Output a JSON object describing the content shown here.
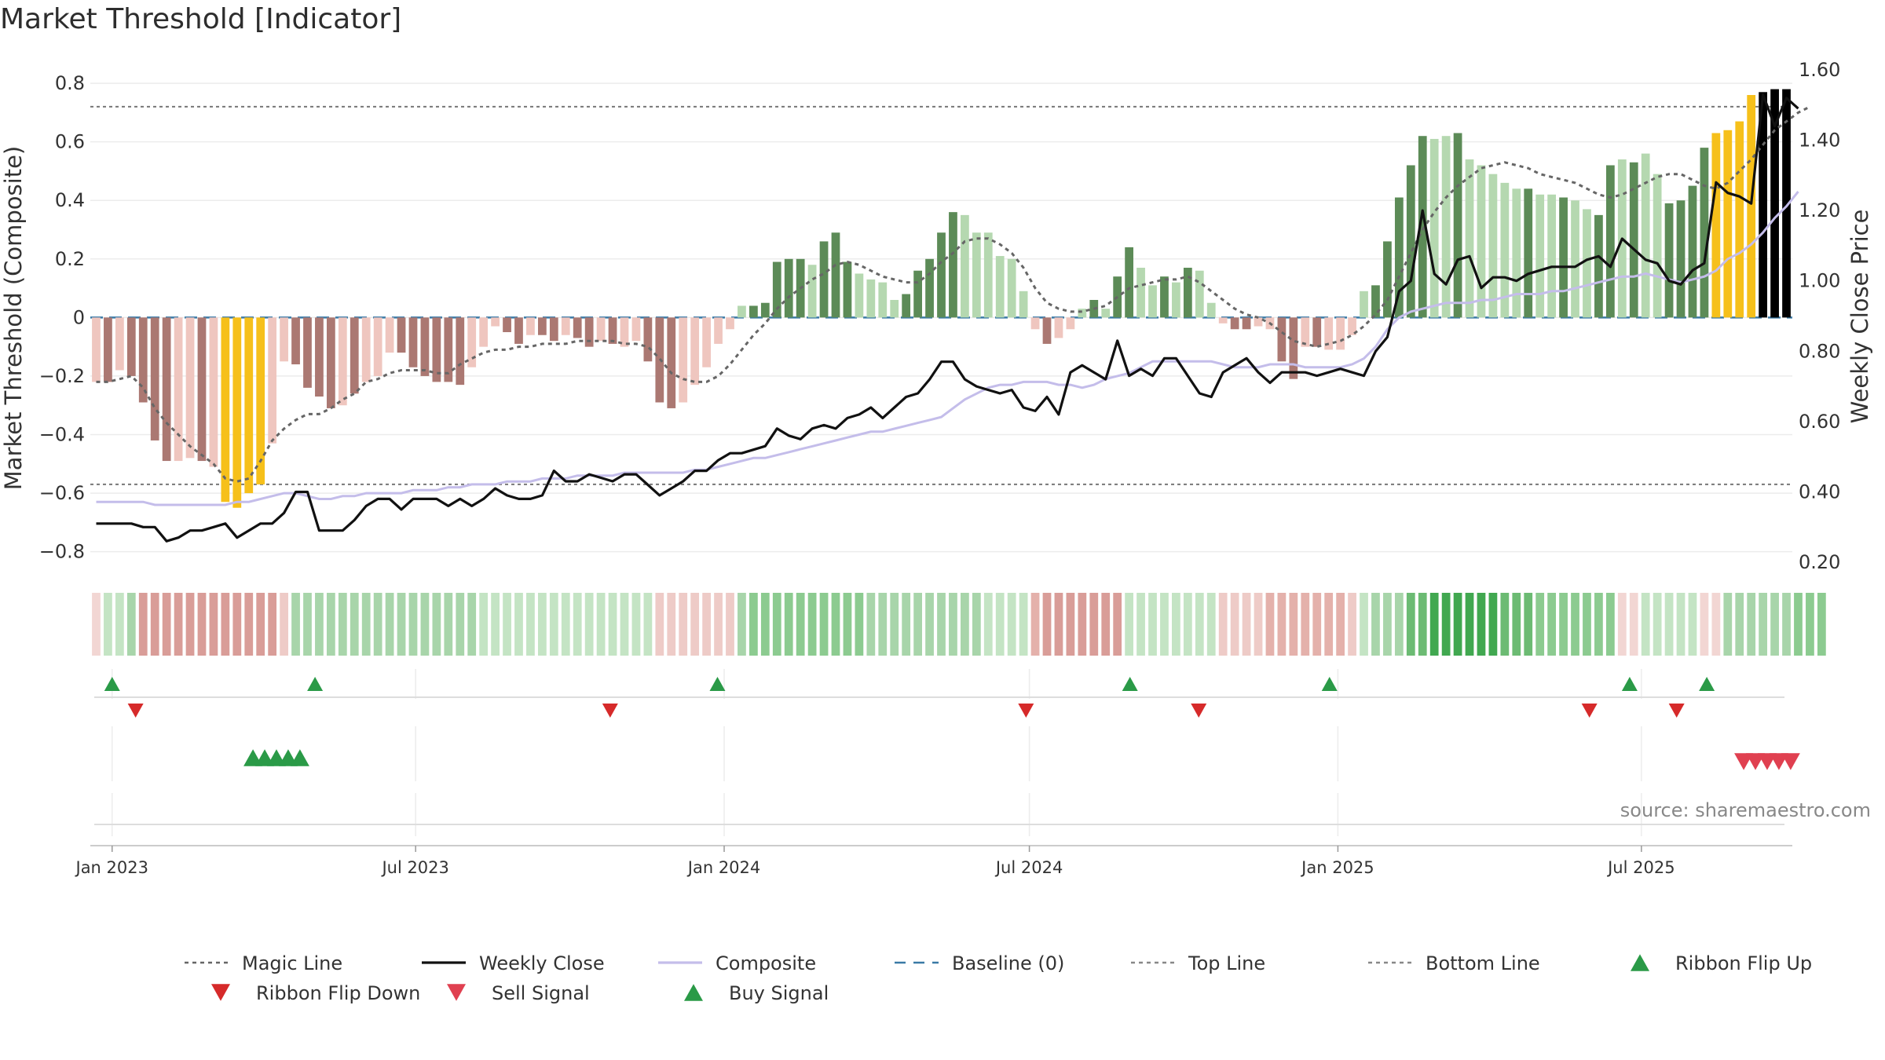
{
  "chart_data": {
    "type": "bar",
    "title": "Market Threshold [Indicator]",
    "ylabel": "Market Threshold (Composite)",
    "y2label": "Weekly Close Price",
    "ylim": [
      -0.86,
      0.87
    ],
    "y2lim": [
      0.18,
      1.62
    ],
    "yticks": [
      -0.8,
      -0.6,
      -0.4,
      -0.2,
      0,
      0.2,
      0.4,
      0.6,
      0.8
    ],
    "yticklabels": [
      "−0.8",
      "−0.6",
      "−0.4",
      "−0.2",
      "0",
      "0.2",
      "0.4",
      "0.6",
      "0.8"
    ],
    "y2ticks": [
      0.2,
      0.4,
      0.6,
      0.8,
      1.0,
      1.2,
      1.4,
      1.6
    ],
    "y2ticklabels": [
      "0.20",
      "0.40",
      "0.60",
      "0.80",
      "1.00",
      "1.20",
      "1.40",
      "1.60"
    ],
    "x_start": "2022-12-19",
    "x_end": "2025-09-29",
    "date_ticks": [
      {
        "date": "2023-01-01",
        "label": "Jan 2023"
      },
      {
        "date": "2023-07-01",
        "label": "Jul 2023"
      },
      {
        "date": "2024-01-01",
        "label": "Jan 2024"
      },
      {
        "date": "2024-07-01",
        "label": "Jul 2024"
      },
      {
        "date": "2025-01-01",
        "label": "Jan 2025"
      },
      {
        "date": "2025-07-01",
        "label": "Jul 2025"
      }
    ],
    "top_line": 0.72,
    "bottom_line": -0.57,
    "baseline": 0,
    "composite_bars": [
      -0.22,
      -0.22,
      -0.18,
      -0.2,
      -0.29,
      -0.42,
      -0.49,
      -0.49,
      -0.48,
      -0.49,
      -0.51,
      -0.63,
      -0.65,
      -0.6,
      -0.57,
      -0.43,
      -0.15,
      -0.16,
      -0.24,
      -0.27,
      -0.31,
      -0.3,
      -0.26,
      -0.22,
      -0.2,
      -0.12,
      -0.12,
      -0.17,
      -0.2,
      -0.22,
      -0.22,
      -0.23,
      -0.17,
      -0.1,
      -0.03,
      -0.05,
      -0.09,
      -0.06,
      -0.06,
      -0.08,
      -0.06,
      -0.07,
      -0.1,
      -0.08,
      -0.09,
      -0.1,
      -0.08,
      -0.15,
      -0.29,
      -0.31,
      -0.29,
      -0.23,
      -0.17,
      -0.09,
      -0.04,
      0.04,
      0.04,
      0.05,
      0.19,
      0.2,
      0.2,
      0.18,
      0.26,
      0.29,
      0.19,
      0.15,
      0.13,
      0.12,
      0.06,
      0.08,
      0.16,
      0.2,
      0.29,
      0.36,
      0.35,
      0.29,
      0.29,
      0.21,
      0.2,
      0.09,
      -0.04,
      -0.09,
      -0.07,
      -0.04,
      0.03,
      0.06,
      0.03,
      0.14,
      0.24,
      0.17,
      0.11,
      0.14,
      0.12,
      0.17,
      0.16,
      0.05,
      -0.02,
      -0.04,
      -0.04,
      -0.03,
      -0.04,
      -0.15,
      -0.21,
      -0.1,
      -0.1,
      -0.11,
      -0.11,
      -0.06,
      0.09,
      0.11,
      0.26,
      0.41,
      0.52,
      0.62,
      0.61,
      0.62,
      0.63,
      0.54,
      0.52,
      0.49,
      0.46,
      0.44,
      0.44,
      0.42,
      0.42,
      0.41,
      0.4,
      0.37,
      0.35,
      0.52,
      0.54,
      0.53,
      0.56,
      0.49,
      0.39,
      0.4,
      0.45,
      0.58,
      0.63,
      0.64,
      0.67,
      0.76,
      0.77,
      0.78,
      0.78
    ],
    "bar_colors": [
      "#efc6bf",
      "#ab7872",
      "#efc6bf",
      "#ab7872",
      "#ab7872",
      "#ab7872",
      "#ab7872",
      "#efc6bf",
      "#efc6bf",
      "#ab7872",
      "#efc6bf",
      "#f6c01a",
      "#f6c01a",
      "#f6c01a",
      "#f6c01a",
      "#efc6bf",
      "#efc6bf",
      "#ab7872",
      "#ab7872",
      "#ab7872",
      "#ab7872",
      "#efc6bf",
      "#ab7872",
      "#efc6bf",
      "#efc6bf",
      "#efc6bf",
      "#ab7872",
      "#ab7872",
      "#ab7872",
      "#ab7872",
      "#ab7872",
      "#ab7872",
      "#efc6bf",
      "#efc6bf",
      "#efc6bf",
      "#ab7872",
      "#ab7872",
      "#efc6bf",
      "#ab7872",
      "#ab7872",
      "#efc6bf",
      "#ab7872",
      "#ab7872",
      "#efc6bf",
      "#ab7872",
      "#efc6bf",
      "#efc6bf",
      "#ab7872",
      "#ab7872",
      "#ab7872",
      "#efc6bf",
      "#efc6bf",
      "#efc6bf",
      "#efc6bf",
      "#efc6bf",
      "#b5d8b0",
      "#5c8b57",
      "#5c8b57",
      "#5c8b57",
      "#5c8b57",
      "#5c8b57",
      "#b5d8b0",
      "#5c8b57",
      "#5c8b57",
      "#5c8b57",
      "#b5d8b0",
      "#b5d8b0",
      "#b5d8b0",
      "#b5d8b0",
      "#5c8b57",
      "#5c8b57",
      "#5c8b57",
      "#5c8b57",
      "#5c8b57",
      "#b5d8b0",
      "#b5d8b0",
      "#b5d8b0",
      "#b5d8b0",
      "#b5d8b0",
      "#b5d8b0",
      "#efc6bf",
      "#ab7872",
      "#efc6bf",
      "#efc6bf",
      "#b5d8b0",
      "#5c8b57",
      "#b5d8b0",
      "#5c8b57",
      "#5c8b57",
      "#b5d8b0",
      "#b5d8b0",
      "#5c8b57",
      "#b5d8b0",
      "#5c8b57",
      "#b5d8b0",
      "#b5d8b0",
      "#efc6bf",
      "#ab7872",
      "#ab7872",
      "#efc6bf",
      "#efc6bf",
      "#ab7872",
      "#ab7872",
      "#efc6bf",
      "#ab7872",
      "#efc6bf",
      "#efc6bf",
      "#efc6bf",
      "#b5d8b0",
      "#5c8b57",
      "#5c8b57",
      "#5c8b57",
      "#5c8b57",
      "#5c8b57",
      "#b5d8b0",
      "#b5d8b0",
      "#5c8b57",
      "#b5d8b0",
      "#b5d8b0",
      "#b5d8b0",
      "#b5d8b0",
      "#b5d8b0",
      "#5c8b57",
      "#b5d8b0",
      "#b5d8b0",
      "#5c8b57",
      "#b5d8b0",
      "#b5d8b0",
      "#5c8b57",
      "#5c8b57",
      "#b5d8b0",
      "#5c8b57",
      "#b5d8b0",
      "#b5d8b0",
      "#5c8b57",
      "#5c8b57",
      "#5c8b57",
      "#5c8b57",
      "#f6c01a",
      "#f6c01a",
      "#f6c01a",
      "#f6c01a"
    ],
    "series": [
      {
        "name": "Magic Line",
        "values": [
          -0.22,
          -0.22,
          -0.21,
          -0.2,
          -0.24,
          -0.31,
          -0.36,
          -0.4,
          -0.44,
          -0.47,
          -0.5,
          -0.55,
          -0.56,
          -0.55,
          -0.49,
          -0.42,
          -0.38,
          -0.35,
          -0.33,
          -0.33,
          -0.31,
          -0.28,
          -0.26,
          -0.22,
          -0.21,
          -0.19,
          -0.18,
          -0.18,
          -0.18,
          -0.19,
          -0.19,
          -0.16,
          -0.14,
          -0.12,
          -0.11,
          -0.11,
          -0.1,
          -0.1,
          -0.09,
          -0.09,
          -0.09,
          -0.08,
          -0.08,
          -0.08,
          -0.08,
          -0.09,
          -0.09,
          -0.1,
          -0.14,
          -0.19,
          -0.21,
          -0.22,
          -0.22,
          -0.2,
          -0.16,
          -0.11,
          -0.06,
          -0.02,
          0.03,
          0.07,
          0.1,
          0.13,
          0.15,
          0.18,
          0.19,
          0.18,
          0.16,
          0.14,
          0.13,
          0.12,
          0.12,
          0.15,
          0.19,
          0.22,
          0.26,
          0.27,
          0.27,
          0.25,
          0.22,
          0.17,
          0.1,
          0.05,
          0.03,
          0.02,
          0.02,
          0.03,
          0.04,
          0.07,
          0.1,
          0.11,
          0.12,
          0.13,
          0.13,
          0.14,
          0.12,
          0.09,
          0.06,
          0.03,
          0.01,
          0.0,
          -0.02,
          -0.05,
          -0.08,
          -0.09,
          -0.1,
          -0.09,
          -0.08,
          -0.06,
          -0.03,
          0.01,
          0.06,
          0.14,
          0.22,
          0.3,
          0.36,
          0.41,
          0.45,
          0.48,
          0.51,
          0.52,
          0.53,
          0.52,
          0.51,
          0.49,
          0.48,
          0.47,
          0.46,
          0.44,
          0.42,
          0.41,
          0.42,
          0.44,
          0.46,
          0.48,
          0.49,
          0.49,
          0.47,
          0.45,
          0.44,
          0.46,
          0.5,
          0.54,
          0.59,
          0.64,
          0.67,
          0.7,
          0.72
        ]
      },
      {
        "name": "Weekly Close",
        "values": [
          0.31,
          0.31,
          0.31,
          0.31,
          0.3,
          0.3,
          0.26,
          0.27,
          0.29,
          0.29,
          0.3,
          0.31,
          0.27,
          0.29,
          0.31,
          0.31,
          0.34,
          0.4,
          0.4,
          0.29,
          0.29,
          0.29,
          0.32,
          0.36,
          0.38,
          0.38,
          0.35,
          0.38,
          0.38,
          0.38,
          0.36,
          0.38,
          0.36,
          0.38,
          0.41,
          0.39,
          0.38,
          0.38,
          0.39,
          0.46,
          0.43,
          0.43,
          0.45,
          0.44,
          0.43,
          0.45,
          0.45,
          0.42,
          0.39,
          0.41,
          0.43,
          0.46,
          0.46,
          0.49,
          0.51,
          0.51,
          0.52,
          0.53,
          0.58,
          0.56,
          0.55,
          0.58,
          0.59,
          0.58,
          0.61,
          0.62,
          0.64,
          0.61,
          0.64,
          0.67,
          0.68,
          0.72,
          0.77,
          0.77,
          0.72,
          0.7,
          0.69,
          0.68,
          0.69,
          0.64,
          0.63,
          0.67,
          0.62,
          0.74,
          0.76,
          0.74,
          0.72,
          0.83,
          0.73,
          0.75,
          0.73,
          0.78,
          0.78,
          0.73,
          0.68,
          0.67,
          0.74,
          0.76,
          0.78,
          0.74,
          0.71,
          0.74,
          0.74,
          0.74,
          0.73,
          0.74,
          0.75,
          0.74,
          0.73,
          0.8,
          0.84,
          0.97,
          1.0,
          1.2,
          1.02,
          0.99,
          1.06,
          1.07,
          0.98,
          1.01,
          1.01,
          1.0,
          1.02,
          1.03,
          1.04,
          1.04,
          1.04,
          1.06,
          1.07,
          1.04,
          1.12,
          1.09,
          1.06,
          1.05,
          1.0,
          0.99,
          1.03,
          1.05,
          1.28,
          1.25,
          1.24,
          1.22,
          1.53,
          1.44,
          1.52,
          1.49
        ]
      },
      {
        "name": "Composite",
        "values": [
          -0.63,
          -0.63,
          -0.63,
          -0.63,
          -0.63,
          -0.64,
          -0.64,
          -0.64,
          -0.64,
          -0.64,
          -0.64,
          -0.64,
          -0.63,
          -0.63,
          -0.62,
          -0.61,
          -0.6,
          -0.6,
          -0.61,
          -0.62,
          -0.62,
          -0.61,
          -0.61,
          -0.6,
          -0.6,
          -0.6,
          -0.6,
          -0.59,
          -0.59,
          -0.59,
          -0.58,
          -0.58,
          -0.57,
          -0.57,
          -0.57,
          -0.56,
          -0.56,
          -0.56,
          -0.55,
          -0.55,
          -0.55,
          -0.54,
          -0.54,
          -0.54,
          -0.54,
          -0.53,
          -0.53,
          -0.53,
          -0.53,
          -0.53,
          -0.53,
          -0.52,
          -0.52,
          -0.51,
          -0.5,
          -0.49,
          -0.48,
          -0.48,
          -0.47,
          -0.46,
          -0.45,
          -0.44,
          -0.43,
          -0.42,
          -0.41,
          -0.4,
          -0.39,
          -0.39,
          -0.38,
          -0.37,
          -0.36,
          -0.35,
          -0.34,
          -0.31,
          -0.28,
          -0.26,
          -0.24,
          -0.23,
          -0.23,
          -0.22,
          -0.22,
          -0.22,
          -0.23,
          -0.23,
          -0.24,
          -0.23,
          -0.21,
          -0.2,
          -0.19,
          -0.17,
          -0.15,
          -0.15,
          -0.15,
          -0.15,
          -0.15,
          -0.15,
          -0.16,
          -0.17,
          -0.17,
          -0.17,
          -0.16,
          -0.16,
          -0.16,
          -0.17,
          -0.17,
          -0.17,
          -0.17,
          -0.16,
          -0.14,
          -0.1,
          -0.04,
          0.0,
          0.02,
          0.03,
          0.04,
          0.05,
          0.05,
          0.05,
          0.06,
          0.06,
          0.07,
          0.08,
          0.08,
          0.08,
          0.09,
          0.09,
          0.1,
          0.11,
          0.12,
          0.13,
          0.14,
          0.14,
          0.15,
          0.14,
          0.13,
          0.12,
          0.13,
          0.14,
          0.16,
          0.2,
          0.22,
          0.25,
          0.29,
          0.34,
          0.38,
          0.43
        ]
      }
    ],
    "ribbon_colors": [
      "#f2d6d3",
      "#c4e4c4",
      "#c4e4c4",
      "#a8d5aa",
      "#d99d98",
      "#d99d98",
      "#d99d98",
      "#d99d98",
      "#d99d98",
      "#d99d98",
      "#d99d98",
      "#d99d98",
      "#d99d98",
      "#d99d98",
      "#d99d98",
      "#d99d98",
      "#eecbc7",
      "#a8d5aa",
      "#a8d5aa",
      "#a8d5aa",
      "#a8d5aa",
      "#a8d5aa",
      "#a8d5aa",
      "#a8d5aa",
      "#a8d5aa",
      "#a8d5aa",
      "#a8d5aa",
      "#a8d5aa",
      "#a8d5aa",
      "#a8d5aa",
      "#a8d5aa",
      "#a8d5aa",
      "#a8d5aa",
      "#c4e4c4",
      "#c4e4c4",
      "#c4e4c4",
      "#c4e4c4",
      "#c4e4c4",
      "#c4e4c4",
      "#c4e4c4",
      "#c4e4c4",
      "#c4e4c4",
      "#c4e4c4",
      "#c4e4c4",
      "#c4e4c4",
      "#c4e4c4",
      "#c4e4c4",
      "#c4e4c4",
      "#eecbc7",
      "#eecbc7",
      "#eecbc7",
      "#eecbc7",
      "#eecbc7",
      "#eecbc7",
      "#eecbc7",
      "#a8d5aa",
      "#8ccb90",
      "#8ccb90",
      "#8ccb90",
      "#8ccb90",
      "#8ccb90",
      "#8ccb90",
      "#8ccb90",
      "#8ccb90",
      "#8ccb90",
      "#8ccb90",
      "#a8d5aa",
      "#a8d5aa",
      "#a8d5aa",
      "#a8d5aa",
      "#a8d5aa",
      "#a8d5aa",
      "#a8d5aa",
      "#a8d5aa",
      "#a8d5aa",
      "#a8d5aa",
      "#c4e4c4",
      "#c4e4c4",
      "#c4e4c4",
      "#c4e4c4",
      "#e4b1ab",
      "#d99d98",
      "#d99d98",
      "#d99d98",
      "#d99d98",
      "#d99d98",
      "#d99d98",
      "#d99d98",
      "#c4e4c4",
      "#c4e4c4",
      "#c4e4c4",
      "#c4e4c4",
      "#c4e4c4",
      "#c4e4c4",
      "#c4e4c4",
      "#c4e4c4",
      "#eecbc7",
      "#eecbc7",
      "#eecbc7",
      "#eecbc7",
      "#e4b1ab",
      "#e4b1ab",
      "#e4b1ab",
      "#e4b1ab",
      "#e4b1ab",
      "#e4b1ab",
      "#e4b1ab",
      "#eecbc7",
      "#c4e4c4",
      "#a8d5aa",
      "#a8d5aa",
      "#a8d5aa",
      "#6cbb73",
      "#6cbb73",
      "#41a850",
      "#41a850",
      "#41a850",
      "#41a850",
      "#41a850",
      "#41a850",
      "#6cbb73",
      "#6cbb73",
      "#6cbb73",
      "#8ccb90",
      "#8ccb90",
      "#8ccb90",
      "#8ccb90",
      "#8ccb90",
      "#8ccb90",
      "#8ccb90",
      "#f2d6d3",
      "#f2d6d3",
      "#c4e4c4",
      "#c4e4c4",
      "#c4e4c4",
      "#c4e4c4",
      "#c4e4c4",
      "#f2d6d3",
      "#f2d6d3",
      "#a8d5aa",
      "#a8d5aa",
      "#a8d5aa",
      "#a8d5aa",
      "#a8d5aa",
      "#a8d5aa",
      "#8ccb90",
      "#8ccb90",
      "#8ccb90"
    ],
    "ribbon_flip_up_dates": [
      "2023-01-01",
      "2023-05-02",
      "2023-12-28",
      "2024-08-30",
      "2024-12-27",
      "2025-06-24",
      "2025-08-09"
    ],
    "ribbon_flip_down_dates": [
      "2023-01-15",
      "2023-10-25",
      "2024-06-29",
      "2024-10-10",
      "2025-05-31",
      "2025-07-22"
    ],
    "buy_signal_dates": [
      "2023-03-26",
      "2023-04-02",
      "2023-04-09",
      "2023-04-16",
      "2023-04-23"
    ],
    "sell_signal_dates": [
      "2025-08-31",
      "2025-09-07",
      "2025-09-14",
      "2025-09-21",
      "2025-09-28"
    ],
    "source": "source: sharemaestro.com",
    "legend_position": "bottom",
    "legend": [
      {
        "label": "Magic Line",
        "kind": "dotted-line",
        "color": "#666666"
      },
      {
        "label": "Weekly Close",
        "kind": "solid-line",
        "color": "#111111"
      },
      {
        "label": "Composite",
        "kind": "solid-line",
        "color": "#c4bdea"
      },
      {
        "label": "Baseline (0)",
        "kind": "dashed-line",
        "color": "#3a7aa6"
      },
      {
        "label": "Top Line",
        "kind": "dotted-line",
        "color": "#888888"
      },
      {
        "label": "Bottom Line",
        "kind": "dotted-line",
        "color": "#888888"
      },
      {
        "label": "Ribbon Flip Up",
        "kind": "triangle-up",
        "color": "#2a9a47"
      },
      {
        "label": "Ribbon Flip Down",
        "kind": "triangle-down",
        "color": "#d62a2a"
      },
      {
        "label": "Sell Signal",
        "kind": "triangle-down",
        "color": "#e04050"
      },
      {
        "label": "Buy Signal",
        "kind": "triangle-up",
        "color": "#2a9a47"
      }
    ]
  },
  "colors": {
    "magic_line": "#666666",
    "weekly_close": "#111111",
    "composite": "#c4bdea",
    "baseline": "#3a7aa6",
    "ref_lines": "#777777",
    "flip_up": "#2a9a47",
    "flip_down": "#d62a2a",
    "sell": "#e04050",
    "buy": "#2a9a47"
  }
}
